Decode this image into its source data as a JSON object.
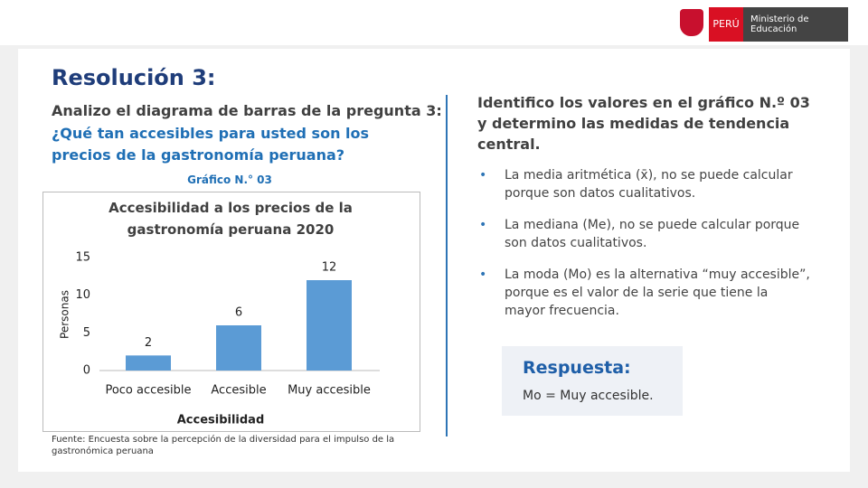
{
  "header": {
    "country": "PERÚ",
    "ministry": "Ministerio de Educación"
  },
  "title": "Resolución 3:",
  "left": {
    "intro": "Analizo el diagrama de barras de la pregunta 3:",
    "question": "¿Qué tan accesibles para usted son los precios de la gastronomía peruana?",
    "figure_label": "Gráfico N.° 03"
  },
  "chart_data": {
    "type": "bar",
    "title": "Accesibilidad a los precios de la gastronomía peruana 2020",
    "categories": [
      "Poco accesible",
      "Accesible",
      "Muy accesible"
    ],
    "values": [
      2,
      6,
      12
    ],
    "color": "#5b9bd5",
    "ylim": [
      0,
      15
    ],
    "yticks": [
      0,
      5,
      10,
      15
    ],
    "ylabel": "Personas",
    "xlabel": "Accesibilidad",
    "grid": false
  },
  "source": "Fuente: Encuesta sobre la percepción de la diversidad para el impulso de la gastronómica peruana",
  "right": {
    "heading": "Identifico los valores en el gráfico N.º 03 y determino las medidas de tendencia central.",
    "bullets": [
      "La media aritmética (x̄), no se puede calcular porque son datos cualitativos.",
      "La mediana (Me), no se puede calcular porque son datos cualitativos.",
      "La moda (Mo) es la alternativa “muy accesible”, porque es el valor de la serie que tiene la mayor frecuencia."
    ]
  },
  "answer": {
    "title": "Respuesta:",
    "text": "Mo = Muy accesible."
  }
}
